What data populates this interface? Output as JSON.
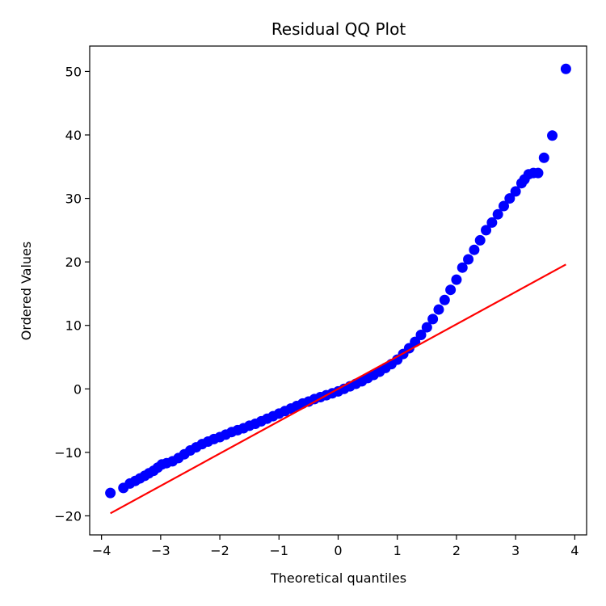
{
  "chart_data": {
    "type": "scatter",
    "title": "Residual QQ Plot",
    "xlabel": "Theoretical quantiles",
    "ylabel": "Ordered Values",
    "xlim": [
      -4.2,
      4.2
    ],
    "ylim": [
      -23,
      54
    ],
    "xticks": [
      -4,
      -3,
      -2,
      -1,
      0,
      1,
      2,
      3,
      4
    ],
    "yticks": [
      -20,
      -10,
      0,
      10,
      20,
      30,
      40,
      50
    ],
    "xtick_labels": [
      "−4",
      "−3",
      "−2",
      "−1",
      "0",
      "1",
      "2",
      "3",
      "4"
    ],
    "ytick_labels": [
      "−20",
      "−10",
      "0",
      "10",
      "20",
      "30",
      "40",
      "50"
    ],
    "grid": false,
    "colors": {
      "points": "#0000ff",
      "line": "#ff0000"
    },
    "series": [
      {
        "kind": "points",
        "x": [
          -3.85,
          -3.63,
          -3.52,
          -3.43,
          -3.35,
          -3.27,
          -3.2,
          -3.12,
          -3.05,
          -2.98,
          -2.9,
          -2.8,
          -2.7,
          -2.6,
          -2.5,
          -2.4,
          -2.3,
          -2.2,
          -2.1,
          -2.0,
          -1.9,
          -1.8,
          -1.7,
          -1.6,
          -1.5,
          -1.4,
          -1.3,
          -1.2,
          -1.1,
          -1.0,
          -0.9,
          -0.8,
          -0.7,
          -0.6,
          -0.5,
          -0.4,
          -0.3,
          -0.2,
          -0.1,
          0.0,
          0.1,
          0.2,
          0.3,
          0.4,
          0.5,
          0.6,
          0.7,
          0.8,
          0.9,
          1.0,
          1.1,
          1.2,
          1.3,
          1.4,
          1.5,
          1.6,
          1.7,
          1.8,
          1.9,
          2.0,
          2.1,
          2.2,
          2.3,
          2.4,
          2.5,
          2.6,
          2.7,
          2.8,
          2.9,
          3.0,
          3.1,
          3.15,
          3.22,
          3.3,
          3.38,
          3.48,
          3.62,
          3.85
        ],
        "y": [
          -16.4,
          -15.6,
          -14.9,
          -14.5,
          -14.1,
          -13.7,
          -13.3,
          -12.9,
          -12.4,
          -11.9,
          -11.7,
          -11.4,
          -10.9,
          -10.3,
          -9.7,
          -9.2,
          -8.7,
          -8.3,
          -7.9,
          -7.6,
          -7.2,
          -6.8,
          -6.5,
          -6.2,
          -5.8,
          -5.5,
          -5.1,
          -4.7,
          -4.3,
          -3.9,
          -3.5,
          -3.1,
          -2.7,
          -2.3,
          -2.0,
          -1.6,
          -1.3,
          -1.0,
          -0.7,
          -0.4,
          0.0,
          0.4,
          0.8,
          1.2,
          1.7,
          2.2,
          2.7,
          3.3,
          3.9,
          4.6,
          5.5,
          6.4,
          7.4,
          8.5,
          9.7,
          11.0,
          12.5,
          14.0,
          15.6,
          17.2,
          19.1,
          20.4,
          21.9,
          23.4,
          25.0,
          26.2,
          27.5,
          28.8,
          30.0,
          31.1,
          32.4,
          33.0,
          33.8,
          34.0,
          34.0,
          36.4,
          39.9,
          50.4
        ]
      },
      {
        "kind": "line",
        "x": [
          -3.85,
          3.85
        ],
        "y": [
          -19.6,
          19.6
        ]
      }
    ]
  }
}
